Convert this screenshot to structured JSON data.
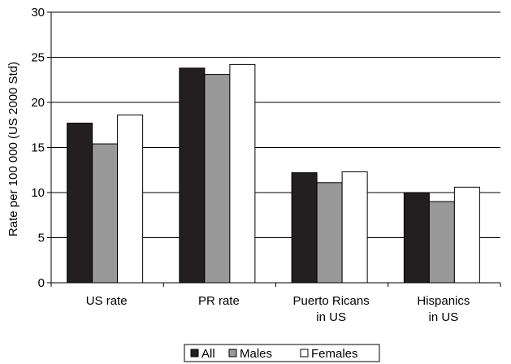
{
  "chart_data": {
    "type": "bar",
    "ylabel": "Rate per 100 000 (US 2000 Std)",
    "xlabel": "",
    "ylim": [
      0,
      30
    ],
    "yticks": [
      "0",
      "5",
      "10",
      "15",
      "20",
      "25",
      "30"
    ],
    "grid": true,
    "legend_position": "bottom",
    "categories": [
      [
        "US rate"
      ],
      [
        "PR rate"
      ],
      [
        "Puerto Ricans",
        "in US"
      ],
      [
        "Hispanics",
        "in US"
      ]
    ],
    "series": [
      {
        "name": "All",
        "color": "#231f20",
        "values": [
          17.7,
          23.8,
          12.2,
          10.0
        ]
      },
      {
        "name": "Males",
        "color": "#999999",
        "values": [
          15.4,
          23.1,
          11.1,
          9.0
        ]
      },
      {
        "name": "Females",
        "color": "#ffffff",
        "values": [
          18.6,
          24.2,
          12.3,
          10.6
        ]
      }
    ]
  }
}
